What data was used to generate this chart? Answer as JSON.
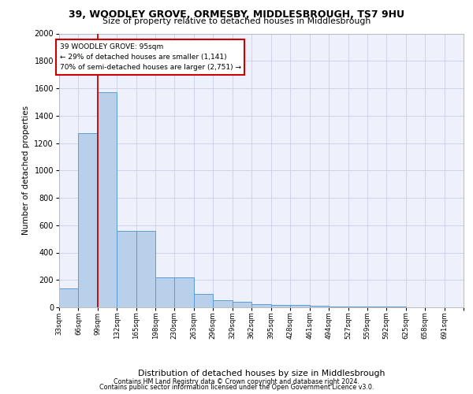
{
  "title_line1": "39, WOODLEY GROVE, ORMESBY, MIDDLESBROUGH, TS7 9HU",
  "title_line2": "Size of property relative to detached houses in Middlesbrough",
  "xlabel": "Distribution of detached houses by size in Middlesbrough",
  "ylabel": "Number of detached properties",
  "footer_line1": "Contains HM Land Registry data © Crown copyright and database right 2024.",
  "footer_line2": "Contains public sector information licensed under the Open Government Licence v3.0.",
  "annotation_line1": "39 WOODLEY GROVE: 95sqm",
  "annotation_line2": "← 29% of detached houses are smaller (1,141)",
  "annotation_line3": "70% of semi-detached houses are larger (2,751) →",
  "bin_labels": [
    "33sqm",
    "66sqm",
    "99sqm",
    "132sqm",
    "165sqm",
    "198sqm",
    "230sqm",
    "263sqm",
    "296sqm",
    "329sqm",
    "362sqm",
    "395sqm",
    "428sqm",
    "461sqm",
    "494sqm",
    "527sqm",
    "559sqm",
    "592sqm",
    "625sqm",
    "658sqm",
    "691sqm"
  ],
  "bin_starts": [
    33,
    66,
    99,
    132,
    165,
    198,
    230,
    263,
    296,
    329,
    362,
    395,
    428,
    461,
    494,
    527,
    559,
    592,
    625,
    658,
    691
  ],
  "bin_width": 33,
  "bar_heights": [
    140,
    1270,
    1570,
    560,
    560,
    220,
    220,
    95,
    50,
    40,
    25,
    18,
    15,
    12,
    8,
    5,
    4,
    3,
    2,
    2,
    1
  ],
  "bar_color": "#b8d0ea",
  "bar_edge_color": "#5b9bd5",
  "vline_x": 99,
  "vline_color": "#cc0000",
  "annotation_box_edge": "#cc0000",
  "ylim": [
    0,
    2000
  ],
  "yticks": [
    0,
    200,
    400,
    600,
    800,
    1000,
    1200,
    1400,
    1600,
    1800,
    2000
  ],
  "grid_color": "#c8cfe8",
  "bg_color": "#eef1fb"
}
